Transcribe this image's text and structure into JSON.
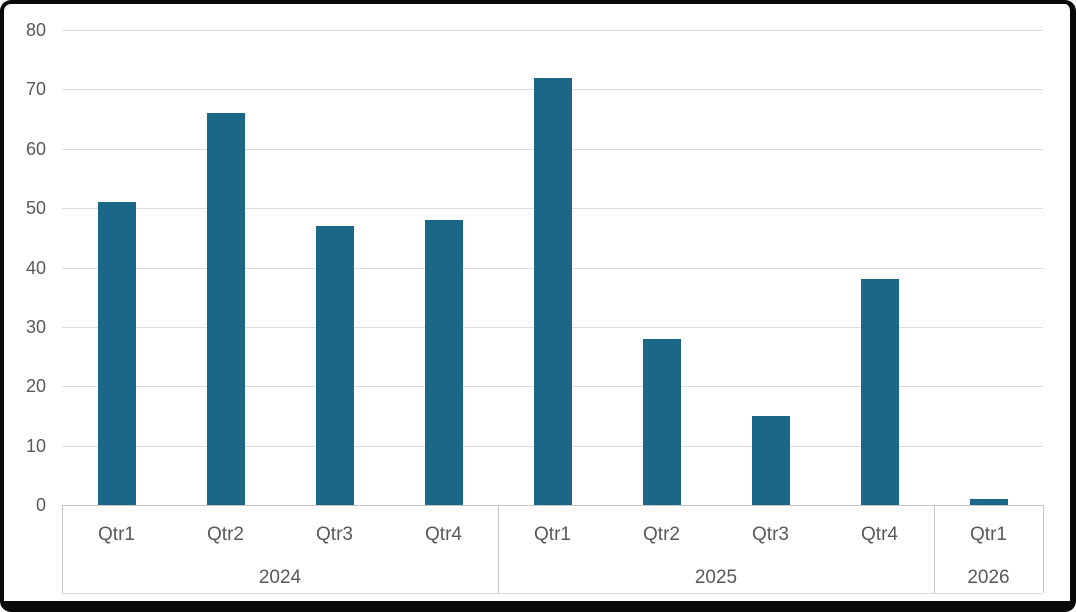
{
  "window": {
    "background": "#ffffff",
    "frame_border_color": "#0a0a0a"
  },
  "chart_data": {
    "type": "bar",
    "title": "",
    "legend": "none",
    "gridlines": true,
    "bar_color": "#1A6788",
    "axis_label_color": "#595959",
    "gridline_color": "#DCDCDC",
    "axis_line_color": "#C6C6C6",
    "y_axis": {
      "min": 0,
      "max": 80,
      "tick_interval": 10,
      "tick_labels": [
        "0",
        "10",
        "20",
        "30",
        "40",
        "50",
        "60",
        "70",
        "80"
      ]
    },
    "x_axis": {
      "multi_level": true,
      "groups": [
        {
          "label": "2024",
          "categories": [
            "Qtr1",
            "Qtr2",
            "Qtr3",
            "Qtr4"
          ],
          "values": [
            51,
            66,
            47,
            48
          ]
        },
        {
          "label": "2025",
          "categories": [
            "Qtr1",
            "Qtr2",
            "Qtr3",
            "Qtr4"
          ],
          "values": [
            72,
            28,
            15,
            38
          ]
        },
        {
          "label": "2026",
          "categories": [
            "Qtr1"
          ],
          "values": [
            1
          ]
        }
      ]
    }
  }
}
